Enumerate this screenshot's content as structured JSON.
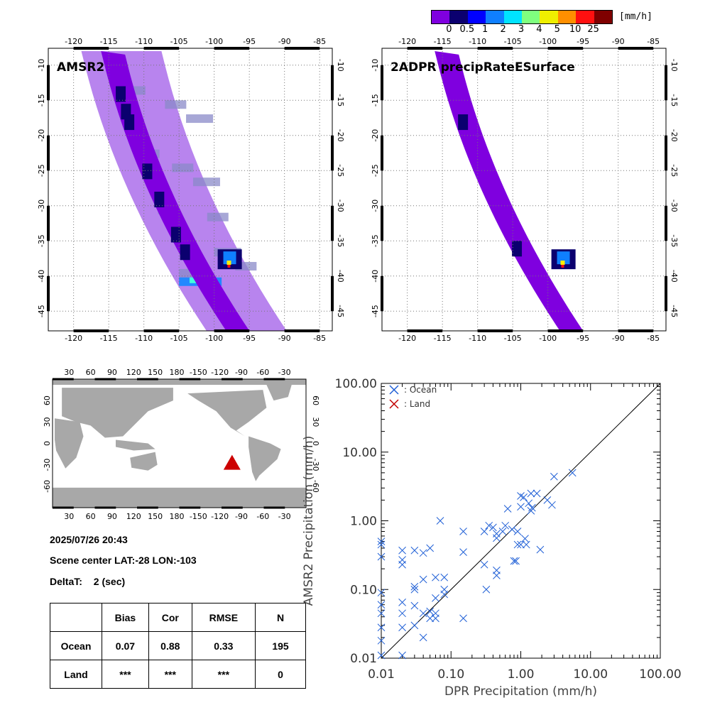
{
  "colorbar": {
    "unit": "[mm/h]",
    "colors": [
      "#7f00df",
      "#0b006f",
      "#0000ff",
      "#0f7fff",
      "#00e3ff",
      "#7fff7f",
      "#efef00",
      "#ff8f00",
      "#ff1010",
      "#7f0000"
    ],
    "tick_labels": [
      "0",
      "0.5",
      "1",
      "2",
      "3",
      "4",
      "5",
      "10",
      "25"
    ]
  },
  "maps": [
    {
      "title": "AMSR2",
      "lon_ticks": [
        "-120",
        "-115",
        "-110",
        "-105",
        "-100",
        "-95",
        "-90",
        "-85"
      ],
      "lat_ticks": [
        "-10",
        "-15",
        "-20",
        "-25",
        "-30",
        "-35",
        "-40",
        "-45"
      ]
    },
    {
      "title": "2ADPR precipRateESurface",
      "lon_ticks": [
        "-120",
        "-115",
        "-110",
        "-105",
        "-100",
        "-95",
        "-90",
        "-85"
      ],
      "lat_ticks": [
        "-10",
        "-15",
        "-20",
        "-25",
        "-30",
        "-35",
        "-40",
        "-45"
      ]
    }
  ],
  "world_map": {
    "lon_ticks": [
      "30",
      "60",
      "90",
      "120",
      "150",
      "180",
      "-150",
      "-120",
      "-90",
      "-60",
      "-30"
    ],
    "lat_ticks": [
      "60",
      "30",
      "0",
      "-30",
      "-60"
    ],
    "land_color": "#a8a8a8",
    "marker_color": "#cc0000"
  },
  "info": {
    "datetime": "2025/07/26 20:43",
    "scene_center": "Scene center LAT:-28   LON:-103",
    "delta_label": "DeltaT:",
    "delta_value": "2 (sec)"
  },
  "stats_table": {
    "headers": [
      "Bias",
      "Cor",
      "RMSE",
      "N"
    ],
    "rows": [
      {
        "label": "Ocean",
        "values": [
          "0.07",
          "0.88",
          "0.33",
          "195"
        ]
      },
      {
        "label": "Land",
        "values": [
          "***",
          "***",
          "***",
          "0"
        ]
      }
    ]
  },
  "chart_data": {
    "type": "scatter",
    "xlabel": "DPR Precipitation (mm/h)",
    "ylabel": "AMSR2 Precipitation (mm/h)",
    "x_scale": "log",
    "y_scale": "log",
    "xlim": [
      0.01,
      100
    ],
    "ylim": [
      0.01,
      100
    ],
    "x_tick_labels": [
      "0.01",
      "0.10",
      "1.00",
      "10.00",
      "100.00"
    ],
    "y_tick_labels": [
      "0.01",
      "0.10",
      "1.00",
      "10.00",
      "100.00"
    ],
    "legend_placement": "top-left",
    "series": [
      {
        "name": ": Ocean",
        "color": "#1f5fd6",
        "points": [
          [
            0.01,
            0.5
          ],
          [
            0.01,
            0.45
          ],
          [
            0.01,
            0.3
          ],
          [
            0.01,
            0.09
          ],
          [
            0.01,
            0.06
          ],
          [
            0.01,
            0.045
          ],
          [
            0.01,
            0.028
          ],
          [
            0.01,
            0.018
          ],
          [
            0.01,
            0.011
          ],
          [
            0.02,
            0.37
          ],
          [
            0.02,
            0.27
          ],
          [
            0.02,
            0.23
          ],
          [
            0.02,
            0.065
          ],
          [
            0.02,
            0.045
          ],
          [
            0.02,
            0.028
          ],
          [
            0.02,
            0.011
          ],
          [
            0.03,
            0.37
          ],
          [
            0.03,
            0.11
          ],
          [
            0.03,
            0.1
          ],
          [
            0.03,
            0.058
          ],
          [
            0.03,
            0.03
          ],
          [
            0.04,
            0.34
          ],
          [
            0.04,
            0.14
          ],
          [
            0.04,
            0.045
          ],
          [
            0.04,
            0.02
          ],
          [
            0.05,
            0.4
          ],
          [
            0.05,
            0.048
          ],
          [
            0.05,
            0.038
          ],
          [
            0.06,
            0.15
          ],
          [
            0.06,
            0.075
          ],
          [
            0.06,
            0.045
          ],
          [
            0.06,
            0.038
          ],
          [
            0.07,
            1.0
          ],
          [
            0.08,
            0.15
          ],
          [
            0.08,
            0.1
          ],
          [
            0.08,
            0.085
          ],
          [
            0.15,
            0.7
          ],
          [
            0.15,
            0.35
          ],
          [
            0.15,
            0.038
          ],
          [
            0.3,
            0.7
          ],
          [
            0.3,
            0.23
          ],
          [
            0.32,
            0.1
          ],
          [
            0.35,
            0.85
          ],
          [
            0.4,
            0.8
          ],
          [
            0.45,
            0.65
          ],
          [
            0.45,
            0.56
          ],
          [
            0.45,
            0.19
          ],
          [
            0.45,
            0.16
          ],
          [
            0.55,
            0.7
          ],
          [
            0.6,
            0.85
          ],
          [
            0.65,
            1.5
          ],
          [
            0.75,
            0.75
          ],
          [
            0.8,
            0.26
          ],
          [
            0.85,
            0.26
          ],
          [
            0.9,
            0.7
          ],
          [
            0.9,
            0.45
          ],
          [
            1.0,
            1.6
          ],
          [
            1.0,
            2.3
          ],
          [
            1.0,
            0.45
          ],
          [
            1.1,
            2.2
          ],
          [
            1.15,
            0.55
          ],
          [
            1.2,
            0.45
          ],
          [
            1.3,
            1.8
          ],
          [
            1.4,
            1.4
          ],
          [
            1.4,
            2.5
          ],
          [
            1.45,
            1.55
          ],
          [
            1.7,
            2.5
          ],
          [
            1.9,
            0.38
          ],
          [
            2.4,
            2.0
          ],
          [
            2.8,
            1.7
          ],
          [
            3.0,
            4.4
          ],
          [
            5.5,
            5.0
          ]
        ]
      },
      {
        "name": ": Land",
        "color": "#c00000",
        "points": []
      }
    ]
  }
}
